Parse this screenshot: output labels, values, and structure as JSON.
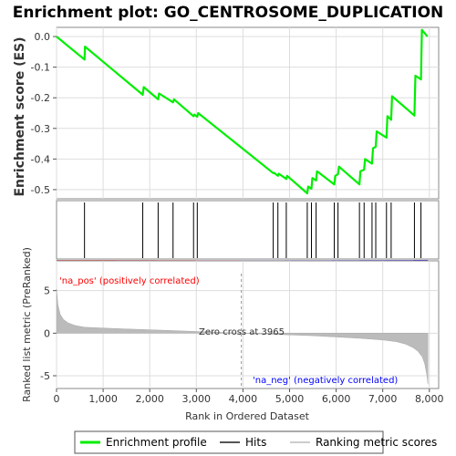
{
  "chart_data": {
    "type": "line",
    "title": "Enrichment plot: GO_CENTROSOME_DUPLICATION",
    "xlabel": "Rank in Ordered Dataset",
    "ylabel_top": "Enrichment score (ES)",
    "ylabel_bottom": "Ranked list metric (PreRanked)",
    "xlim": [
      0,
      8200
    ],
    "x_ticks": [
      0,
      1000,
      2000,
      3000,
      4000,
      5000,
      6000,
      7000,
      8000
    ],
    "x_tick_labels": [
      "0",
      "1,000",
      "2,000",
      "3,000",
      "4,000",
      "5,000",
      "6,000",
      "7,000",
      "8,000"
    ],
    "es_ylim": [
      -0.53,
      0.03
    ],
    "es_ticks": [
      0.0,
      -0.1,
      -0.2,
      -0.3,
      -0.4,
      -0.5
    ],
    "es_tick_labels": [
      "0.0",
      "-0.1",
      "-0.2",
      "-0.3",
      "-0.4",
      "-0.5"
    ],
    "metric_ylim": [
      -6.5,
      8.5
    ],
    "metric_ticks": [
      5,
      0,
      -5
    ],
    "metric_tick_labels": [
      "5",
      "0",
      "-5"
    ],
    "colors": {
      "es_line": "#00ee00",
      "hits": "#000000",
      "metric_fill": "#bbbbbb",
      "pos_label": "#ff0000",
      "neg_label": "#0000ff",
      "grid": "#dddddd"
    },
    "enrichment_profile": {
      "name": "Enrichment profile",
      "x": [
        0,
        600,
        610,
        1850,
        1870,
        2180,
        2200,
        2500,
        2520,
        2940,
        2960,
        3020,
        3040,
        4650,
        4670,
        4750,
        4770,
        4930,
        4950,
        5380,
        5400,
        5470,
        5490,
        5570,
        5590,
        5960,
        5980,
        6040,
        6060,
        6500,
        6520,
        6600,
        6620,
        6770,
        6790,
        6850,
        6870,
        7080,
        7100,
        7180,
        7200,
        7680,
        7700,
        7820,
        7840,
        7960
      ],
      "y": [
        0.0,
        -0.075,
        -0.033,
        -0.19,
        -0.165,
        -0.205,
        -0.186,
        -0.215,
        -0.205,
        -0.26,
        -0.255,
        -0.262,
        -0.25,
        -0.446,
        -0.445,
        -0.455,
        -0.448,
        -0.465,
        -0.455,
        -0.512,
        -0.49,
        -0.497,
        -0.462,
        -0.47,
        -0.44,
        -0.483,
        -0.455,
        -0.45,
        -0.425,
        -0.483,
        -0.44,
        -0.435,
        -0.4,
        -0.415,
        -0.365,
        -0.36,
        -0.31,
        -0.33,
        -0.26,
        -0.272,
        -0.195,
        -0.258,
        -0.128,
        -0.14,
        0.022,
        0.0
      ]
    },
    "hits": {
      "name": "Hits",
      "x": [
        600,
        1850,
        2180,
        2500,
        2940,
        3020,
        4650,
        4750,
        4930,
        5380,
        5470,
        5570,
        5960,
        6040,
        6500,
        6600,
        6770,
        6850,
        7080,
        7180,
        7680,
        7820
      ]
    },
    "ranking_metric": {
      "name": "Ranking metric scores",
      "x": [
        0,
        30,
        80,
        150,
        250,
        400,
        600,
        1000,
        1500,
        2000,
        2500,
        3000,
        3500,
        3965,
        4500,
        5000,
        5500,
        6000,
        6500,
        7000,
        7300,
        7500,
        7650,
        7750,
        7850,
        7900,
        7950,
        7970
      ],
      "y": [
        5.2,
        3.3,
        2.2,
        1.6,
        1.2,
        0.9,
        0.7,
        0.6,
        0.5,
        0.4,
        0.3,
        0.2,
        0.1,
        0.0,
        -0.1,
        -0.2,
        -0.3,
        -0.45,
        -0.6,
        -0.8,
        -1.0,
        -1.3,
        -1.7,
        -2.1,
        -2.8,
        -3.6,
        -5.0,
        -6.0
      ]
    },
    "color_bar": {
      "segments": [
        {
          "x0": 0,
          "x1": 1300,
          "color": "#f06060"
        },
        {
          "x0": 1300,
          "x1": 2150,
          "color": "#f07a85"
        },
        {
          "x0": 2150,
          "x1": 3000,
          "color": "#f3979c"
        },
        {
          "x0": 3000,
          "x1": 3965,
          "color": "#f7c1d9"
        },
        {
          "x0": 3965,
          "x1": 4900,
          "color": "#d7d3f3"
        },
        {
          "x0": 4900,
          "x1": 5900,
          "color": "#c2bcf6"
        },
        {
          "x0": 5900,
          "x1": 6500,
          "color": "#9c98f3"
        },
        {
          "x0": 6500,
          "x1": 7050,
          "color": "#7a70ee"
        },
        {
          "x0": 7050,
          "x1": 7650,
          "color": "#6a5ce8"
        },
        {
          "x0": 7650,
          "x1": 7970,
          "color": "#3a1ee0"
        }
      ]
    },
    "annotations": {
      "pos": "'na_pos' (positively correlated)",
      "neg": "'na_neg' (negatively correlated)",
      "zero_cross": "Zero cross at 3965",
      "zero_cross_x": 3965
    },
    "legend": {
      "items": [
        {
          "label": "Enrichment profile",
          "color": "#00ee00",
          "kind": "thick"
        },
        {
          "label": "Hits",
          "color": "#555555",
          "kind": "thin"
        },
        {
          "label": "Ranking metric scores",
          "color": "#cccccc",
          "kind": "thin"
        }
      ]
    }
  }
}
